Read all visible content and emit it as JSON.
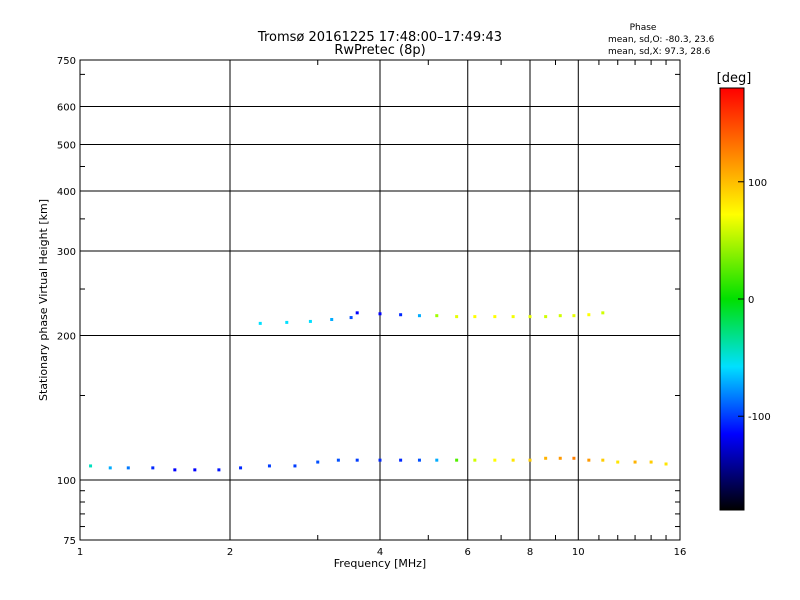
{
  "chart_data": {
    "type": "scatter",
    "title": "Tromsø 20161225 17:48:00–17:49:43",
    "subtitle": "RwPretec (8p)",
    "xlabel": "Frequency [MHz]",
    "ylabel": "Stationary phase Virtual Height [km]",
    "x_scale": "log",
    "y_scale": "log",
    "xlim": [
      1,
      16
    ],
    "ylim": [
      75,
      750
    ],
    "x_ticks": [
      1,
      2,
      4,
      6,
      8,
      10,
      16
    ],
    "x_tick_labels": [
      "1",
      "2",
      "4",
      "6",
      "8",
      "10",
      "16"
    ],
    "y_ticks": [
      75,
      100,
      200,
      300,
      400,
      500,
      600,
      750
    ],
    "y_tick_labels": [
      "75",
      "100",
      "200",
      "300",
      "400",
      "500",
      "600",
      "750"
    ],
    "grid": true,
    "phase_stats": {
      "heading": "Phase",
      "line_o": "mean, sd,O: -80.3, 23.6",
      "line_x": "mean, sd,X:  97.3, 28.6"
    },
    "colorbar": {
      "label": "[deg]",
      "tick_values": [
        100,
        0,
        -100
      ],
      "tick_labels": [
        "100",
        "0",
        "-100"
      ],
      "min": -180,
      "max": 180
    },
    "traces": [
      {
        "x": [
          1.05,
          1.15,
          1.25,
          1.4,
          1.55,
          1.7,
          1.9,
          2.1,
          2.4,
          2.7,
          3.0,
          3.3,
          3.6,
          4.0,
          4.4,
          4.8,
          5.2,
          5.7,
          6.2,
          6.8,
          7.4,
          8.0,
          8.6,
          9.2,
          9.8,
          10.5,
          11.2,
          12.0,
          13.0,
          14.0,
          15.0
        ],
        "y": [
          107,
          106,
          106,
          106,
          105,
          105,
          105,
          106,
          107,
          107,
          109,
          110,
          110,
          110,
          110,
          110,
          110,
          110,
          110,
          110,
          110,
          110,
          111,
          111,
          111,
          110,
          110,
          109,
          109,
          109,
          108
        ],
        "phase": [
          -30,
          -60,
          -80,
          -100,
          -110,
          -110,
          -105,
          -100,
          -95,
          -95,
          -90,
          -90,
          -95,
          -100,
          -100,
          -90,
          -60,
          20,
          60,
          80,
          90,
          100,
          110,
          120,
          130,
          120,
          100,
          90,
          110,
          100,
          90
        ]
      },
      {
        "x": [
          3.6,
          4.0,
          4.4,
          4.8,
          5.2,
          5.7,
          6.2,
          6.8,
          7.4,
          8.0,
          8.6,
          9.2,
          9.8,
          10.5,
          11.2
        ],
        "y": [
          223,
          222,
          221,
          220,
          220,
          219,
          219,
          219,
          219,
          219,
          219,
          220,
          220,
          221,
          223
        ],
        "phase": [
          -110,
          -110,
          -100,
          -60,
          40,
          70,
          80,
          80,
          75,
          70,
          60,
          60,
          70,
          80,
          60
        ]
      },
      {
        "x": [
          2.3,
          2.6,
          2.9,
          3.2,
          3.5
        ],
        "y": [
          212,
          213,
          214,
          216,
          218
        ],
        "phase": [
          -40,
          -40,
          -40,
          -60,
          -90
        ]
      }
    ]
  }
}
